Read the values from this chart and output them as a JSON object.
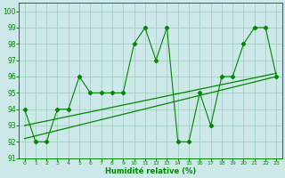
{
  "xlabel": "Humidité relative (%)",
  "bg_color": "#cce8e8",
  "grid_color": "#99ccbb",
  "line_color": "#008800",
  "xlim": [
    -0.5,
    23.5
  ],
  "ylim": [
    91,
    100.5
  ],
  "yticks": [
    91,
    92,
    93,
    94,
    95,
    96,
    97,
    98,
    99,
    100
  ],
  "xticks": [
    0,
    1,
    2,
    3,
    4,
    5,
    6,
    7,
    8,
    9,
    10,
    11,
    12,
    13,
    14,
    15,
    16,
    17,
    18,
    19,
    20,
    21,
    22,
    23
  ],
  "series1_x": [
    0,
    1,
    2,
    3,
    4,
    5,
    6,
    7,
    8,
    9,
    10,
    11,
    12,
    13,
    14,
    15,
    16,
    17,
    18,
    19,
    20,
    21,
    22,
    23
  ],
  "series1_y": [
    94,
    92,
    92,
    94,
    94,
    96,
    95,
    95,
    95,
    95,
    98,
    99,
    97,
    99,
    92,
    92,
    95,
    93,
    96,
    96,
    98,
    99,
    99,
    96
  ],
  "series2_x": [
    0,
    23
  ],
  "series2_y": [
    92.2,
    96.0
  ],
  "series3_x": [
    0,
    23
  ],
  "series3_y": [
    93.0,
    96.2
  ]
}
